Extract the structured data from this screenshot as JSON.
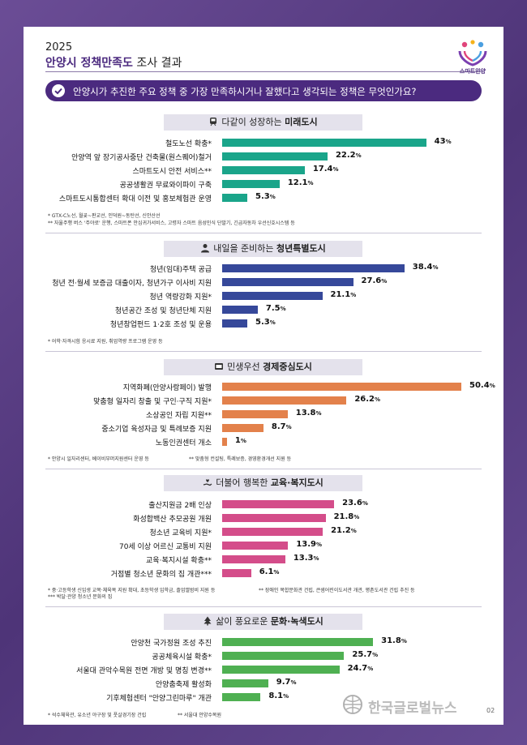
{
  "header": {
    "year": "2025",
    "title_bold": "안양시 정책만족도",
    "title_rest": " 조사 결과",
    "logo_text": "스마트안양"
  },
  "question": "안양시가 추진한 주요 정책 중 가장 만족하시거나 잘했다고 생각되는 정책은 무엇인가요?",
  "colors": {
    "green": "#1aa58a",
    "navy": "#36489a",
    "orange": "#e3814b",
    "pink": "#d44d8a",
    "lime": "#4fb052"
  },
  "chart_data": [
    {
      "type": "bar",
      "title_pre": "다같이 성장하는 ",
      "title_bold": "미래도시",
      "icon": "train-icon",
      "color": "#1aa58a",
      "categories": [
        "철도노선 확충*",
        "안양역 앞 장기공사중단 건축물(원스퀘어)철거",
        "스마트도시 안전 서비스**",
        "공공생활권 무료와이파이 구축",
        "스마트도시통합센터 확대 이전 및 홍보체험관 운영"
      ],
      "values": [
        43,
        22.2,
        17.4,
        12.1,
        5.3
      ],
      "value_labels": [
        "43",
        "22.2",
        "17.4",
        "12.1",
        "5.3"
      ],
      "unit": "%",
      "notes": [
        "* GTX-C노선, 월곶~판교선, 인덕원~동탄선, 신안산선",
        "** 자율주행 버스 '주야로' 운행, 스마트폰 안심귀가서비스, 고령자 스마트 음성인식 단말기, 긴급자동차 우선신호시스템 등"
      ]
    },
    {
      "type": "bar",
      "title_pre": "내일을 준비하는 ",
      "title_bold": "청년특별도시",
      "icon": "person-icon",
      "color": "#36489a",
      "categories": [
        "청년(임대)주택 공급",
        "청년 전·월세 보증금 대출이자, 청년가구 이사비 지원",
        "청년 역량강화 지원*",
        "청년공간 조성 및 청년단체 지원",
        "청년창업펀드 1·2호 조성 및 운용"
      ],
      "values": [
        38.4,
        27.6,
        21.1,
        7.5,
        5.3
      ],
      "value_labels": [
        "38.4",
        "27.6",
        "21.1",
        "7.5",
        "5.3"
      ],
      "unit": "%",
      "notes": [
        "* 어학·자격시험 응시료 지원, 취업역량 프로그램 운영 등"
      ]
    },
    {
      "type": "bar",
      "title_pre": "민생우선 ",
      "title_bold": "경제중심도시",
      "icon": "shop-icon",
      "color": "#e3814b",
      "categories": [
        "지역화폐(안양사랑페이) 발행",
        "맞춤형 일자리 창출 및 구인·구직 지원*",
        "소상공인 자립 지원**",
        "중소기업 육성자금 및 특례보증 지원",
        "노동인권센터 개소"
      ],
      "values": [
        50.4,
        26.2,
        13.8,
        8.7,
        1
      ],
      "value_labels": [
        "50.4",
        "26.2",
        "13.8",
        "8.7",
        "1"
      ],
      "unit": "%",
      "notes": [
        "* 안양시 일자리센터, 베이비부머지원센터 운영 등",
        "** 맞춤형 컨설팅, 특례보증, 경영환경개선 지원 등"
      ]
    },
    {
      "type": "bar",
      "title_pre": "더불어 행복한 ",
      "title_bold": "교육·복지도시",
      "icon": "hand-heart-icon",
      "color": "#d44d8a",
      "categories": [
        "출산지원금 2배 인상",
        "화성합백산 추모공원 개원",
        "청소년 교육비 지원*",
        "70세 이상 어르신 교통비 지원",
        "교육·복지시설 확충**",
        "거점별 청소년 문화의 집 개관***"
      ],
      "values": [
        23.6,
        21.8,
        21.2,
        13.9,
        13.3,
        6.1
      ],
      "value_labels": [
        "23.6",
        "21.8",
        "21.2",
        "13.9",
        "13.3",
        "6.1"
      ],
      "unit": "%",
      "notes": [
        "* 중·고등학생 신입생 교복·체육복 지원 확대, 초등학생 입학금, 졸업앨범비 지원 등",
        "** 장애인 복합문화관 건립, 큰샘어린이도서관 개관, 평촌도서관 건립 추진 등",
        "*** 박달·관양 청소년 문화의 집"
      ]
    },
    {
      "type": "bar",
      "title_pre": "삶이 풍요로운 ",
      "title_bold": "문화·녹색도시",
      "icon": "tree-icon",
      "color": "#4fb052",
      "categories": [
        "안양천 국가정원 조성 추진",
        "공공체육시설 확충*",
        "서울대 관악수목원 전면 개방 및 명칭 변경**",
        "안양춤축제 활성화",
        "기후체험센터 \"안양그린마루\" 개관"
      ],
      "values": [
        31.8,
        25.7,
        24.7,
        9.7,
        8.1
      ],
      "value_labels": [
        "31.8",
        "25.7",
        "24.7",
        "9.7",
        "8.1"
      ],
      "unit": "%",
      "notes": [
        "* 석수체육관, 유소년 야구장 및 풋살경기장 건립",
        "** 서울대 안양수목원"
      ]
    }
  ],
  "footer": {
    "watermark": "한국글로벌뉴스",
    "page": "02"
  }
}
